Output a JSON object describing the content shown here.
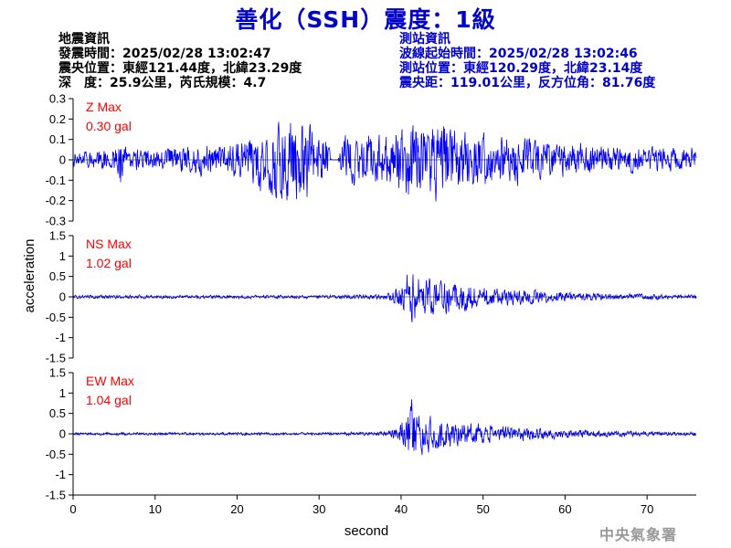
{
  "title": "善化（SSH）震度：1級",
  "quake_info": {
    "heading": "地震資訊",
    "origin_time": "發震時間：2025/02/28 13:02:47",
    "epicenter": "震央位置：東經121.44度，北緯23.29度",
    "depth_magnitude": "深　度：25.9公里，芮氏規模：4.7"
  },
  "station_info": {
    "heading": "測站資訊",
    "wave_start": "波線起始時間：2025/02/28 13:02:46",
    "location": "測站位置：東經120.29度，北緯23.14度",
    "distance": "震央距：119.01公里，反方位角：81.76度"
  },
  "agency": "中央氣象署",
  "colors": {
    "title": "#0000cc",
    "trace": "#0000ff",
    "max_label": "#ff0000",
    "station_text": "#0000cc"
  },
  "chart_data": [
    {
      "type": "line",
      "component": "Z",
      "max_label": "Z Max",
      "max_value": "0.30 gal",
      "x_range": [
        0,
        76
      ],
      "ylim": [
        -0.3,
        0.3
      ],
      "yticks": [
        "0.3",
        "0.2",
        "0.1",
        "0",
        "-0.1",
        "-0.2",
        "-0.3"
      ],
      "envelope": [
        [
          0,
          0.05
        ],
        [
          2,
          0.05
        ],
        [
          5,
          0.07
        ],
        [
          5.8,
          0.16
        ],
        [
          6.5,
          0.06
        ],
        [
          10,
          0.06
        ],
        [
          12,
          0.08
        ],
        [
          15,
          0.09
        ],
        [
          17,
          0.1
        ],
        [
          20,
          0.12
        ],
        [
          22,
          0.14
        ],
        [
          24,
          0.18
        ],
        [
          25,
          0.24
        ],
        [
          26,
          0.28
        ],
        [
          27,
          0.22
        ],
        [
          28,
          0.24
        ],
        [
          29,
          0.2
        ],
        [
          30,
          0.16
        ],
        [
          31,
          0.15
        ],
        [
          31.5,
          0.0
        ],
        [
          32.3,
          0.0
        ],
        [
          33,
          0.14
        ],
        [
          36,
          0.16
        ],
        [
          38,
          0.14
        ],
        [
          40,
          0.18
        ],
        [
          41,
          0.24
        ],
        [
          43,
          0.2
        ],
        [
          45,
          0.22
        ],
        [
          46,
          0.2
        ],
        [
          48,
          0.17
        ],
        [
          50,
          0.16
        ],
        [
          52,
          0.15
        ],
        [
          55,
          0.12
        ],
        [
          60,
          0.1
        ],
        [
          65,
          0.08
        ],
        [
          70,
          0.07
        ],
        [
          76,
          0.07
        ]
      ]
    },
    {
      "type": "line",
      "component": "NS",
      "max_label": "NS Max",
      "max_value": "1.02 gal",
      "x_range": [
        0,
        76
      ],
      "ylim": [
        -1.5,
        1.5
      ],
      "yticks": [
        "1.5",
        "1",
        "0.5",
        "0",
        "-0.5",
        "-1",
        "-1.5"
      ],
      "envelope": [
        [
          0,
          0.05
        ],
        [
          30,
          0.05
        ],
        [
          38,
          0.07
        ],
        [
          39.5,
          0.25
        ],
        [
          40.5,
          0.55
        ],
        [
          41.2,
          0.9
        ],
        [
          42,
          0.65
        ],
        [
          44,
          0.55
        ],
        [
          46,
          0.45
        ],
        [
          48,
          0.42
        ],
        [
          50,
          0.3
        ],
        [
          53,
          0.25
        ],
        [
          56,
          0.2
        ],
        [
          60,
          0.15
        ],
        [
          65,
          0.1
        ],
        [
          70,
          0.08
        ],
        [
          76,
          0.06
        ]
      ]
    },
    {
      "type": "line",
      "component": "EW",
      "max_label": "EW Max",
      "max_value": "1.04 gal",
      "x_range": [
        0,
        76
      ],
      "ylim": [
        -1.5,
        1.5
      ],
      "yticks": [
        "1.5",
        "1",
        "0.5",
        "0",
        "-0.5",
        "-1",
        "-1.5"
      ],
      "envelope": [
        [
          0,
          0.04
        ],
        [
          30,
          0.04
        ],
        [
          38,
          0.06
        ],
        [
          39.5,
          0.2
        ],
        [
          40.5,
          0.5
        ],
        [
          41.2,
          0.95
        ],
        [
          42,
          0.6
        ],
        [
          44,
          0.45
        ],
        [
          46,
          0.4
        ],
        [
          48,
          0.35
        ],
        [
          50,
          0.28
        ],
        [
          53,
          0.22
        ],
        [
          56,
          0.18
        ],
        [
          60,
          0.13
        ],
        [
          65,
          0.09
        ],
        [
          70,
          0.07
        ],
        [
          76,
          0.06
        ]
      ]
    }
  ],
  "x_axis": {
    "label": "second",
    "ticks": [
      "0",
      "10",
      "20",
      "30",
      "40",
      "50",
      "60",
      "70"
    ],
    "tick_values": [
      0,
      10,
      20,
      30,
      40,
      50,
      60,
      70
    ]
  },
  "y_axis_label": "acceleration"
}
